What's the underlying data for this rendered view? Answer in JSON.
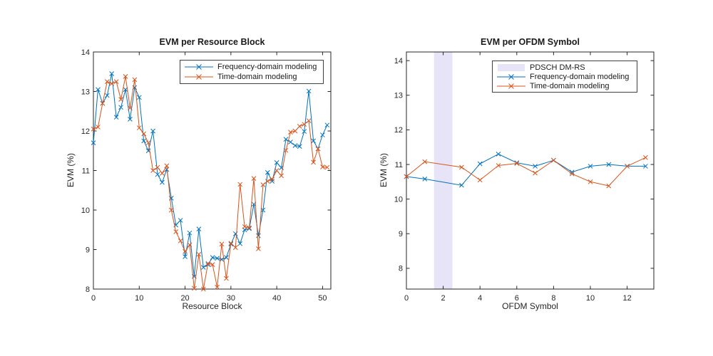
{
  "figure_bg": "#ffffff",
  "axes_color": "#262626",
  "chart_data": [
    {
      "type": "line",
      "title": "EVM per Resource Block",
      "xlabel": "Resource Block",
      "ylabel": "EVM (%)",
      "xlim": [
        0,
        51.8
      ],
      "ylim": [
        8,
        14
      ],
      "xticks": [
        0,
        10,
        20,
        30,
        40,
        50
      ],
      "yticks": [
        8,
        9,
        10,
        11,
        12,
        13,
        14
      ],
      "grid": false,
      "legend_position": "top-right-inside",
      "series": [
        {
          "name": "Frequency-domain modeling",
          "color": "#0072BD",
          "marker": "x",
          "x": [
            0,
            1,
            2,
            3,
            4,
            5,
            6,
            7,
            8,
            9,
            10,
            11,
            12,
            13,
            14,
            15,
            16,
            17,
            18,
            19,
            20,
            21,
            22,
            23,
            24,
            25,
            26,
            27,
            28,
            29,
            30,
            31,
            32,
            33,
            34,
            35,
            36,
            37,
            38,
            39,
            40,
            41,
            42,
            43,
            44,
            45,
            46,
            47,
            48,
            49,
            50,
            51
          ],
          "y": [
            11.7,
            13.05,
            12.7,
            12.9,
            13.45,
            12.35,
            12.6,
            13.05,
            12.3,
            13.1,
            12.85,
            11.75,
            11.5,
            12.0,
            10.9,
            10.7,
            11.03,
            10.3,
            9.62,
            9.74,
            8.82,
            9.42,
            8.32,
            9.52,
            8.55,
            8.62,
            8.8,
            8.78,
            8.75,
            8.8,
            9.14,
            9.4,
            9.15,
            9.5,
            9.53,
            10.15,
            9.35,
            10.0,
            10.95,
            10.73,
            11.2,
            11.07,
            11.79,
            11.72,
            11.63,
            11.61,
            11.99,
            13.01,
            11.75,
            11.55,
            11.9,
            12.15
          ]
        },
        {
          "name": "Time-domain modeling",
          "color": "#D95319",
          "marker": "x",
          "x": [
            0,
            1,
            2,
            3,
            4,
            5,
            6,
            7,
            8,
            9,
            10,
            11,
            12,
            13,
            14,
            15,
            16,
            17,
            18,
            19,
            20,
            21,
            22,
            23,
            24,
            25,
            26,
            27,
            28,
            29,
            30,
            31,
            32,
            33,
            34,
            35,
            36,
            37,
            38,
            39,
            40,
            41,
            42,
            43,
            44,
            45,
            46,
            47,
            48,
            49,
            50,
            51
          ],
          "y": [
            12.05,
            12.1,
            12.7,
            13.25,
            13.2,
            13.25,
            12.8,
            13.38,
            12.58,
            13.3,
            12.08,
            11.93,
            11.7,
            11.0,
            11.08,
            10.93,
            11.12,
            10.0,
            9.45,
            9.22,
            8.95,
            9.12,
            8.02,
            8.88,
            8.0,
            8.65,
            8.62,
            8.05,
            9.14,
            8.27,
            9.16,
            9.05,
            10.65,
            9.58,
            9.55,
            10.8,
            9.02,
            10.64,
            10.73,
            10.78,
            11.0,
            10.87,
            11.51,
            11.97,
            12.0,
            12.12,
            12.17,
            12.26,
            11.21,
            11.55,
            11.09,
            11.08
          ]
        }
      ]
    },
    {
      "type": "line",
      "title": "EVM per OFDM Symbol",
      "xlabel": "OFDM Symbol",
      "ylabel": "EVM (%)",
      "xlim": [
        0,
        13.45
      ],
      "ylim": [
        7.4,
        14.25
      ],
      "xticks": [
        0,
        2,
        4,
        6,
        8,
        10,
        12
      ],
      "yticks": [
        8,
        9,
        10,
        11,
        12,
        13,
        14
      ],
      "grid": false,
      "legend_position": "top-right-inside",
      "band": {
        "label": "PDSCH DM-RS",
        "x_start": 1.5,
        "x_end": 2.5,
        "color": "#E7E4F8"
      },
      "series": [
        {
          "name": "Frequency-domain modeling",
          "color": "#0072BD",
          "marker": "x",
          "x": [
            0,
            1,
            3,
            4,
            5,
            6,
            7,
            8,
            9,
            10,
            11,
            12,
            13
          ],
          "y": [
            10.65,
            10.58,
            10.4,
            11.02,
            11.3,
            11.05,
            10.95,
            11.12,
            10.78,
            10.95,
            11.0,
            10.95,
            10.95
          ]
        },
        {
          "name": "Time-domain modeling",
          "color": "#D95319",
          "marker": "x",
          "x": [
            0,
            1,
            3,
            4,
            5,
            6,
            7,
            8,
            9,
            10,
            11,
            12,
            13
          ],
          "y": [
            10.65,
            11.08,
            10.92,
            10.55,
            10.97,
            11.03,
            10.75,
            11.12,
            10.73,
            10.5,
            10.38,
            10.95,
            11.2
          ]
        }
      ]
    }
  ]
}
